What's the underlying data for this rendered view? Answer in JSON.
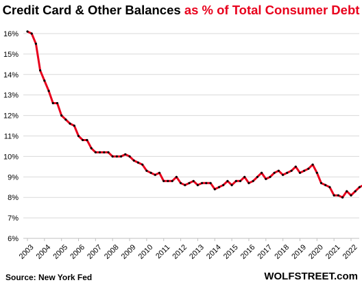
{
  "chart_data": {
    "type": "line",
    "title": "Credit Card & Other Balances",
    "title_highlight": "as % of Total Consumer Debt",
    "xlabel": "",
    "ylabel": "",
    "ylim": [
      6,
      16.5
    ],
    "y_ticks": [
      "6%",
      "7%",
      "8%",
      "9%",
      "10%",
      "11%",
      "12%",
      "13%",
      "14%",
      "15%",
      "16%"
    ],
    "x_ticks": [
      "2003",
      "2004",
      "2005",
      "2006",
      "2007",
      "2008",
      "2009",
      "2010",
      "2011",
      "2012",
      "2013",
      "2014",
      "2015",
      "2016",
      "2017",
      "2018",
      "2019",
      "2020",
      "2021",
      "2022"
    ],
    "x_start": "2003-Q1",
    "grid": true,
    "line_color": "#e8001c",
    "marker_color": "#000000",
    "series": [
      {
        "values": [
          16.1,
          16.0,
          15.5,
          14.2,
          13.7,
          13.2,
          12.6,
          12.6,
          12.0,
          11.8,
          11.6,
          11.5,
          11.0,
          10.8,
          10.8,
          10.4,
          10.2,
          10.2,
          10.2,
          10.2,
          10.0,
          10.0,
          10.0,
          10.1,
          10.0,
          9.8,
          9.7,
          9.6,
          9.3,
          9.2,
          9.1,
          9.2,
          8.8,
          8.8,
          8.8,
          9.0,
          8.7,
          8.6,
          8.7,
          8.8,
          8.6,
          8.7,
          8.7,
          8.7,
          8.4,
          8.5,
          8.6,
          8.8,
          8.6,
          8.8,
          8.8,
          9.0,
          8.7,
          8.8,
          9.0,
          9.2,
          8.9,
          9.0,
          9.2,
          9.3,
          9.1,
          9.2,
          9.3,
          9.5,
          9.2,
          9.3,
          9.4,
          9.6,
          9.2,
          8.7,
          8.6,
          8.5,
          8.1,
          8.1,
          8.0,
          8.3,
          8.1,
          8.3,
          8.5,
          8.6
        ]
      }
    ]
  },
  "footer": {
    "source": "Source: New York Fed",
    "brand": "WOLFSTREET.com"
  }
}
